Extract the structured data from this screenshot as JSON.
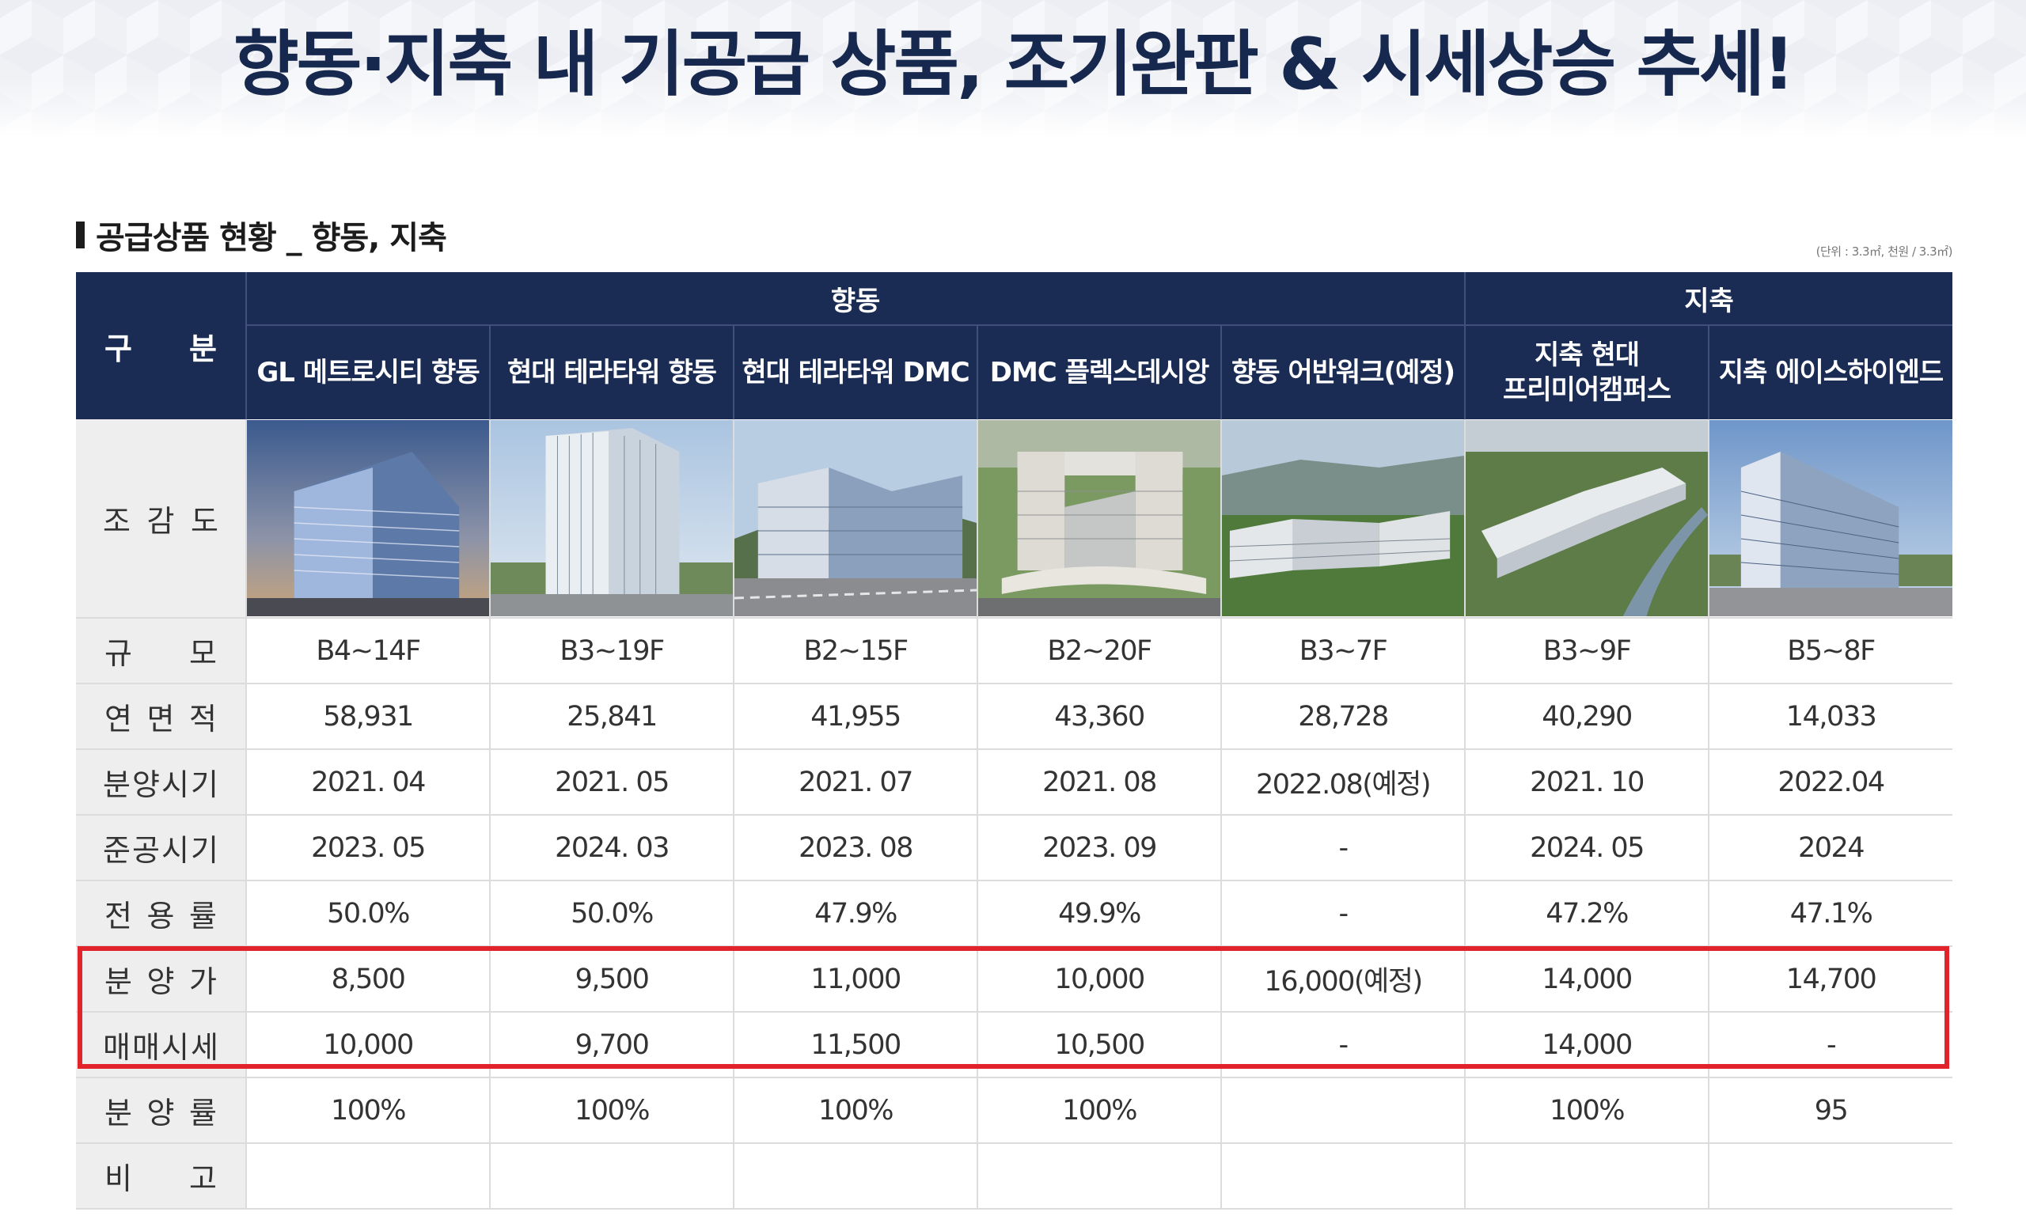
{
  "main_title": "향동·지축 내 기공급 상품, 조기완판 & 시세상승 추세!",
  "section_title": "공급상품 현황 _ 향동, 지축",
  "unit_note": "(단위 : 3.3㎡, 천원 / 3.3㎡)",
  "header": {
    "gubun": [
      "구",
      "분"
    ],
    "groups": [
      "향동",
      "지축"
    ],
    "products": [
      [
        "GL 메트로시티 향동"
      ],
      [
        "현대 테라타워 향동"
      ],
      [
        "현대 테라타워 DMC"
      ],
      [
        "DMC 플렉스데시앙"
      ],
      [
        "향동 어반워크(예정)"
      ],
      [
        "지축 현대",
        "프리미어캠퍼스"
      ],
      [
        "지축 에이스하이엔드"
      ]
    ]
  },
  "rows": {
    "birdseye": {
      "label": [
        "조",
        "감",
        "도"
      ]
    },
    "scale": {
      "label": [
        "규",
        "모"
      ],
      "values": [
        "B4~14F",
        "B3~19F",
        "B2~15F",
        "B2~20F",
        "B3~7F",
        "B3~9F",
        "B5~8F"
      ]
    },
    "area": {
      "label": [
        "연",
        "면",
        "적"
      ],
      "values": [
        "58,931",
        "25,841",
        "41,955",
        "43,360",
        "28,728",
        "40,290",
        "14,033"
      ]
    },
    "sale_period": {
      "label": [
        "분",
        "양",
        "시",
        "기"
      ],
      "values": [
        "2021. 04",
        "2021. 05",
        "2021. 07",
        "2021. 08",
        "2022.08(예정)",
        "2021. 10",
        "2022.04"
      ]
    },
    "completion": {
      "label": [
        "준",
        "공",
        "시",
        "기"
      ],
      "values": [
        "2023. 05",
        "2024. 03",
        "2023. 08",
        "2023. 09",
        "-",
        "2024. 05",
        "2024"
      ]
    },
    "exclusive_rate": {
      "label": [
        "전",
        "용",
        "률"
      ],
      "values": [
        "50.0%",
        "50.0%",
        "47.9%",
        "49.9%",
        "-",
        "47.2%",
        "47.1%"
      ]
    },
    "sale_price": {
      "label": [
        "분",
        "양",
        "가"
      ],
      "values": [
        "8,500",
        "9,500",
        "11,000",
        "10,000",
        "16,000(예정)",
        "14,000",
        "14,700"
      ]
    },
    "market_price": {
      "label": [
        "매",
        "매",
        "시",
        "세"
      ],
      "values": [
        "10,000",
        "9,700",
        "11,500",
        "10,500",
        "-",
        "14,000",
        "-"
      ]
    },
    "sale_rate": {
      "label": [
        "분",
        "양",
        "률"
      ],
      "values": [
        "100%",
        "100%",
        "100%",
        "100%",
        "",
        "100%",
        "95"
      ]
    },
    "remarks": {
      "label": [
        "비",
        "고"
      ],
      "values": [
        "",
        "",
        "",
        "",
        "",
        "",
        ""
      ]
    }
  },
  "colors": {
    "header_navy": "#1a2b54",
    "title_navy": "#17284f",
    "highlight_red": "#e1242b",
    "label_gray": "#eeeeef"
  }
}
